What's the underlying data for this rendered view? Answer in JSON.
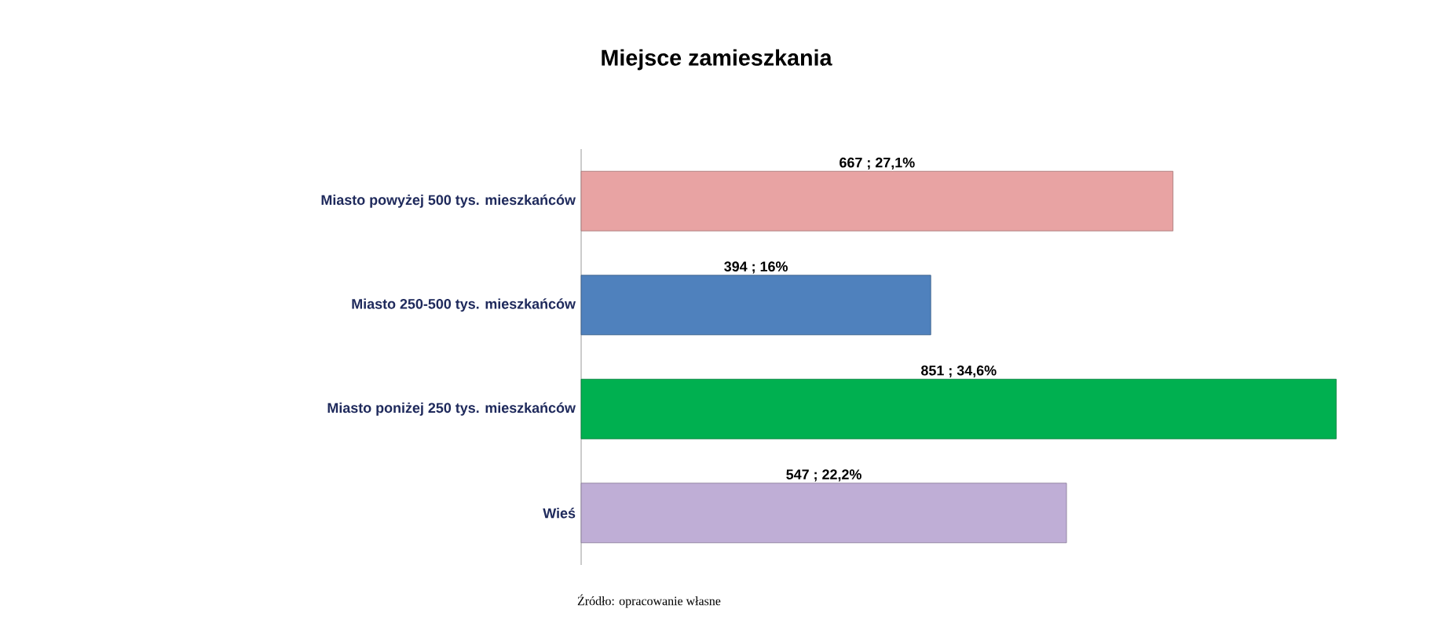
{
  "chart_data": {
    "type": "bar",
    "orientation": "horizontal",
    "title": "Miejsce zamieszkania",
    "categories": [
      "Miasto powyżej 500 tys. mieszkańców",
      "Miasto 250-500 tys. mieszkańców",
      "Miasto poniżej 250 tys. mieszkańców",
      "Wieś"
    ],
    "values": [
      667,
      394,
      851,
      547
    ],
    "colors": [
      "#e8a3a3",
      "#4f81bd",
      "#00b050",
      "#bfaed6"
    ],
    "value_labels": [
      "667 ; 27,1%",
      "394 ; 16%",
      "851 ; 34,6%",
      "547 ; 22,2%"
    ],
    "annotations": [
      "Źródło: opracowanie własne"
    ]
  }
}
